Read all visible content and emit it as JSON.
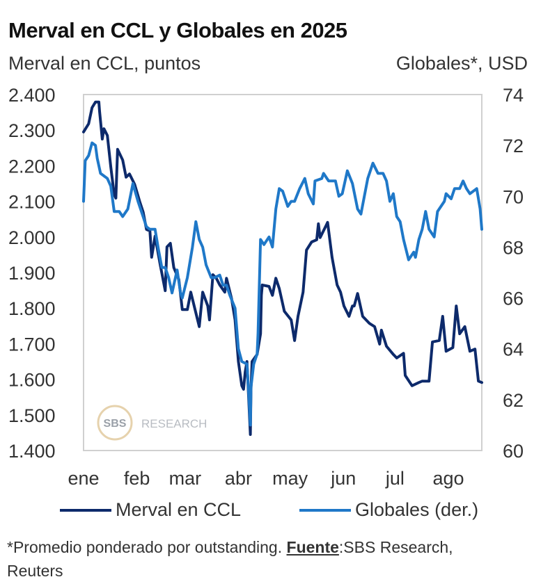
{
  "header": {
    "title": "Merval en CCL y Globales en 2025",
    "left_axis_label": "Merval en CCL, puntos",
    "right_axis_label": "Globales*, USD"
  },
  "legend": {
    "items": [
      {
        "label": "Merval en CCL",
        "color": "#0d2a6b"
      },
      {
        "label": "Globales (der.)",
        "color": "#1f78c8"
      }
    ]
  },
  "watermark": {
    "badge": "SBS",
    "text": "RESEARCH"
  },
  "footnote": {
    "prefix": "*Promedio ponderado por outstanding. ",
    "source_label": "Fuente",
    "source_text": ":SBS Research,",
    "source_text_2": "Reuters"
  },
  "chart_data": {
    "type": "line",
    "title": "Merval en CCL y Globales en 2025",
    "xlabel": "",
    "ylabel": "Merval en CCL, puntos",
    "y2label": "Globales*, USD",
    "x_unit": "day of year 2025 (0 = 1 ene)",
    "x_ticks": [
      {
        "label": "ene",
        "day": 0
      },
      {
        "label": "feb",
        "day": 31
      },
      {
        "label": "mar",
        "day": 59
      },
      {
        "label": "abr",
        "day": 90
      },
      {
        "label": "may",
        "day": 120
      },
      {
        "label": "jun",
        "day": 151
      },
      {
        "label": "jul",
        "day": 181
      },
      {
        "label": "ago",
        "day": 212
      }
    ],
    "xlim": [
      0,
      234
    ],
    "ylim": [
      1400,
      2400
    ],
    "y_ticks": [
      "2.400",
      "2.300",
      "2.200",
      "2.100",
      "2.000",
      "1.900",
      "1.800",
      "1.700",
      "1.600",
      "1.500",
      "1.400"
    ],
    "y_tick_values": [
      2400,
      2300,
      2200,
      2100,
      2000,
      1900,
      1800,
      1700,
      1600,
      1500,
      1400
    ],
    "y2lim": [
      60,
      74
    ],
    "y2_ticks": [
      "74",
      "72",
      "70",
      "68",
      "66",
      "64",
      "62",
      "60"
    ],
    "y2_tick_values": [
      74,
      72,
      70,
      68,
      66,
      64,
      62,
      60
    ],
    "grid": false,
    "legend_position": "bottom",
    "series": [
      {
        "name": "Merval en CCL",
        "axis": "left",
        "color": "#0d2a6b",
        "x": [
          0,
          3,
          5,
          7,
          9,
          9.4,
          11,
          12,
          14,
          16,
          18,
          19,
          20,
          23,
          25,
          27,
          30,
          33,
          35,
          37,
          39,
          40,
          42,
          45,
          48,
          49,
          51,
          53,
          56,
          58,
          61,
          63,
          67,
          68,
          70,
          73,
          74,
          76,
          78,
          80,
          83,
          84,
          87,
          89,
          91,
          93,
          94,
          95,
          96,
          98,
          98.4,
          99,
          102,
          104,
          104.5,
          105,
          109,
          111,
          113,
          115,
          118,
          122,
          124,
          126,
          129,
          131,
          134,
          137,
          138,
          139,
          143,
          143.4,
          146,
          149,
          151,
          153,
          156,
          158,
          159,
          161,
          164,
          168,
          171,
          174,
          175,
          178,
          182,
          184,
          188,
          189,
          193,
          197,
          199,
          203,
          205,
          209,
          211,
          213,
          217,
          219,
          221,
          224,
          227,
          230,
          232,
          234
        ],
        "values": [
          2295,
          2318,
          2363,
          2379,
          2379,
          2353,
          2275,
          2304,
          2285,
          2197,
          2119,
          2109,
          2246,
          2216,
          2168,
          2177,
          2148,
          2099,
          2070,
          2021,
          2017,
          1943,
          2002,
          1923,
          1849,
          1972,
          1982,
          1914,
          1880,
          1796,
          1796,
          1845,
          1767,
          1748,
          1845,
          1806,
          1767,
          1894,
          1884,
          1865,
          1845,
          1884,
          1826,
          1767,
          1650,
          1582,
          1572,
          1621,
          1650,
          1445,
          1572,
          1650,
          1670,
          1728,
          1836,
          1865,
          1861,
          1836,
          1884,
          1855,
          1791,
          1767,
          1709,
          1777,
          1845,
          1963,
          1986,
          1992,
          2037,
          1998,
          2037,
          2041,
          1943,
          1865,
          1845,
          1806,
          1777,
          1806,
          1806,
          1841,
          1777,
          1757,
          1748,
          1699,
          1738,
          1693,
          1670,
          1660,
          1673,
          1611,
          1582,
          1591,
          1595,
          1595,
          1705,
          1709,
          1777,
          1679,
          1689,
          1806,
          1728,
          1748,
          1679,
          1685,
          1595,
          1591
        ]
      },
      {
        "name": "Globales (der.)",
        "axis": "right",
        "color": "#1f78c8",
        "x": [
          0,
          1,
          3,
          5,
          7,
          8,
          10,
          14,
          16,
          18,
          21,
          23,
          26,
          29,
          32,
          34,
          37,
          39,
          42,
          44,
          46,
          48,
          50,
          52,
          55,
          57,
          58,
          61,
          64,
          66,
          68,
          70,
          72,
          75,
          77,
          80,
          82,
          84,
          86,
          89,
          91,
          93,
          96,
          97,
          98,
          98.4,
          100,
          102,
          102.5,
          104,
          106,
          109,
          111,
          113,
          115,
          117,
          120,
          122,
          124,
          127,
          130,
          132,
          135,
          136,
          140,
          141,
          144,
          148,
          150,
          152,
          155,
          158,
          161,
          163,
          165,
          167,
          170,
          173,
          176,
          178,
          180,
          182,
          184,
          186,
          188,
          191,
          194,
          195,
          197,
          199,
          201,
          203,
          206,
          208,
          212,
          213,
          216,
          218,
          221,
          223,
          225,
          227,
          231,
          233,
          234
        ],
        "values": [
          69.8,
          71.4,
          71.6,
          72.1,
          72.0,
          71.5,
          70.9,
          70.7,
          70.4,
          69.4,
          69.4,
          69.2,
          69.5,
          70.5,
          69.8,
          69.4,
          68.8,
          68.7,
          68.7,
          67.9,
          67.2,
          67.2,
          66.8,
          66.2,
          67.1,
          66.2,
          66.0,
          66.8,
          68.0,
          69.0,
          68.3,
          68.0,
          67.3,
          66.8,
          66.8,
          66.9,
          66.5,
          66.5,
          66.1,
          65.6,
          64.0,
          63.5,
          63.4,
          62.3,
          61.0,
          62.5,
          63.4,
          63.8,
          64.6,
          68.3,
          68.1,
          68.4,
          68.0,
          69.5,
          70.3,
          70.2,
          69.6,
          69.8,
          69.8,
          70.3,
          70.7,
          70.1,
          69.7,
          70.6,
          70.7,
          70.9,
          70.6,
          70.6,
          70.0,
          70.1,
          71.0,
          70.5,
          69.5,
          69.3,
          70.0,
          70.7,
          71.3,
          70.9,
          70.9,
          70.6,
          69.8,
          70.1,
          69.2,
          69.0,
          68.3,
          67.5,
          67.8,
          67.6,
          68.3,
          68.7,
          69.4,
          68.7,
          68.4,
          69.4,
          69.8,
          70.1,
          69.9,
          70.3,
          70.3,
          70.6,
          70.3,
          70.1,
          70.3,
          69.5,
          68.7
        ]
      }
    ]
  }
}
